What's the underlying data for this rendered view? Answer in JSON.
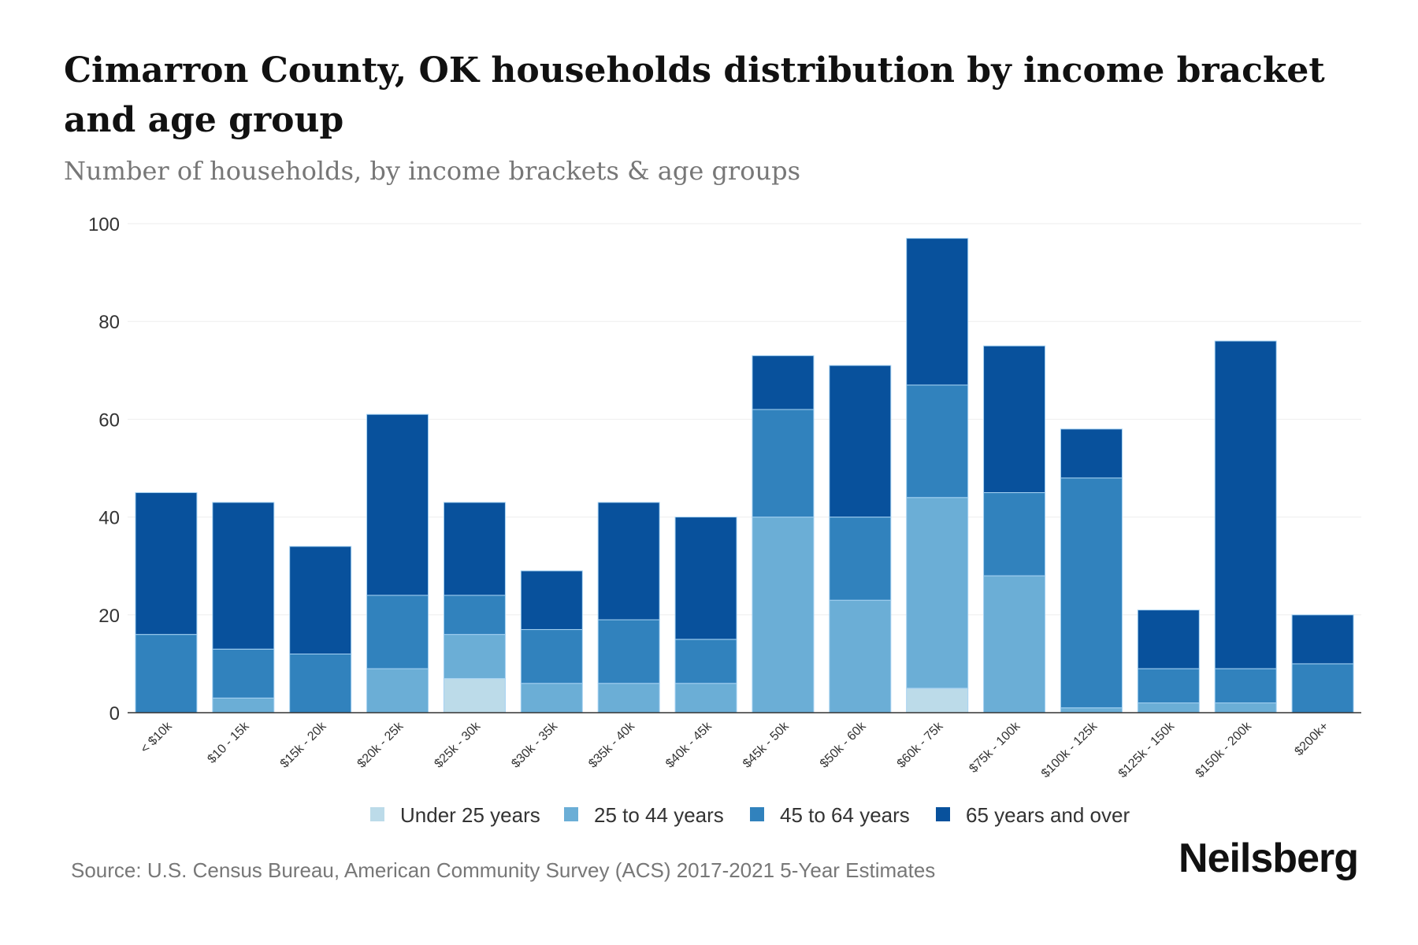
{
  "chart_data": {
    "type": "bar",
    "stacked": true,
    "title": "Cimarron County, OK households distribution by income bracket and age group",
    "subtitle": "Number of households, by income brackets & age groups",
    "xlabel": "",
    "ylabel": "",
    "ylim": [
      0,
      100
    ],
    "yticks": [
      0,
      20,
      40,
      60,
      80,
      100
    ],
    "grid": true,
    "legend_position": "bottom",
    "categories": [
      "< $10k",
      "$10 - 15k",
      "$15k - 20k",
      "$20k - 25k",
      "$25k - 30k",
      "$30k - 35k",
      "$35k - 40k",
      "$40k - 45k",
      "$45k - 50k",
      "$50k - 60k",
      "$60k - 75k",
      "$75k - 100k",
      "$100k - 125k",
      "$125k - 150k",
      "$150k - 200k",
      "$200k+"
    ],
    "series": [
      {
        "name": "Under 25 years",
        "color": "#bcdbe9",
        "values": [
          0,
          0,
          0,
          0,
          7,
          0,
          0,
          0,
          0,
          0,
          5,
          0,
          0,
          0,
          0,
          0
        ]
      },
      {
        "name": "25 to 44 years",
        "color": "#6baed6",
        "values": [
          0,
          3,
          0,
          9,
          9,
          6,
          6,
          6,
          40,
          23,
          39,
          28,
          1,
          2,
          2,
          0
        ]
      },
      {
        "name": "45 to 64 years",
        "color": "#3182bd",
        "values": [
          16,
          10,
          12,
          15,
          8,
          11,
          13,
          9,
          22,
          17,
          23,
          17,
          47,
          7,
          7,
          10
        ]
      },
      {
        "name": "65 years and over",
        "color": "#08519c",
        "values": [
          29,
          30,
          22,
          37,
          19,
          12,
          24,
          25,
          11,
          31,
          30,
          30,
          10,
          12,
          67,
          10
        ]
      }
    ]
  },
  "source": "Source: U.S. Census Bureau, American Community Survey (ACS) 2017-2021 5-Year Estimates",
  "logo": "Neilsberg"
}
